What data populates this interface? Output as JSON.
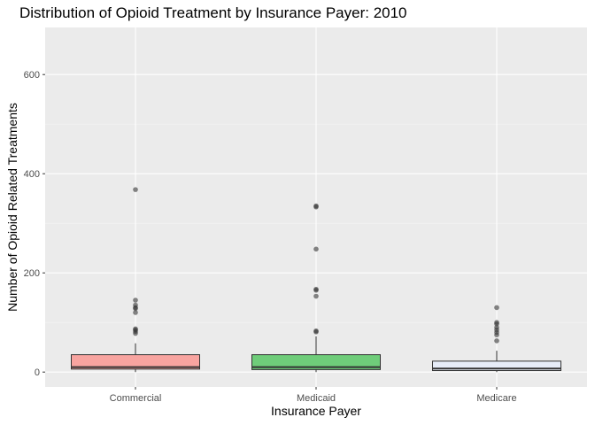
{
  "chart_data": {
    "type": "boxplot",
    "title": "Distribution of Opioid Treatment by Insurance Payer: 2010",
    "xlabel": "Insurance Payer",
    "ylabel": "Number of Opioid Related Treatments",
    "ylim": [
      -30,
      695
    ],
    "yticks": [
      0,
      200,
      400,
      600
    ],
    "categories": [
      "Commercial",
      "Medicaid",
      "Medicare"
    ],
    "boxes": [
      {
        "category": "Commercial",
        "color": "#f8a4a0",
        "q1": 6,
        "median": 10,
        "q3": 35,
        "whisker_low": 0,
        "whisker_high": 58,
        "outliers": [
          368,
          145,
          135,
          130,
          128,
          120,
          87,
          85,
          82,
          78
        ]
      },
      {
        "category": "Medicaid",
        "color": "#6fcd7a",
        "q1": 5,
        "median": 10,
        "q3": 35,
        "whisker_low": 0,
        "whisker_high": 72,
        "outliers": [
          335,
          333,
          248,
          167,
          165,
          153,
          83,
          81
        ]
      },
      {
        "category": "Medicare",
        "color": "#e6ecf8",
        "q1": 3,
        "median": 7,
        "q3": 22,
        "whisker_low": 0,
        "whisker_high": 43,
        "outliers": [
          130,
          100,
          97,
          90,
          85,
          80,
          75,
          63
        ]
      }
    ],
    "panel_background": "#ebebeb",
    "grid": true
  }
}
